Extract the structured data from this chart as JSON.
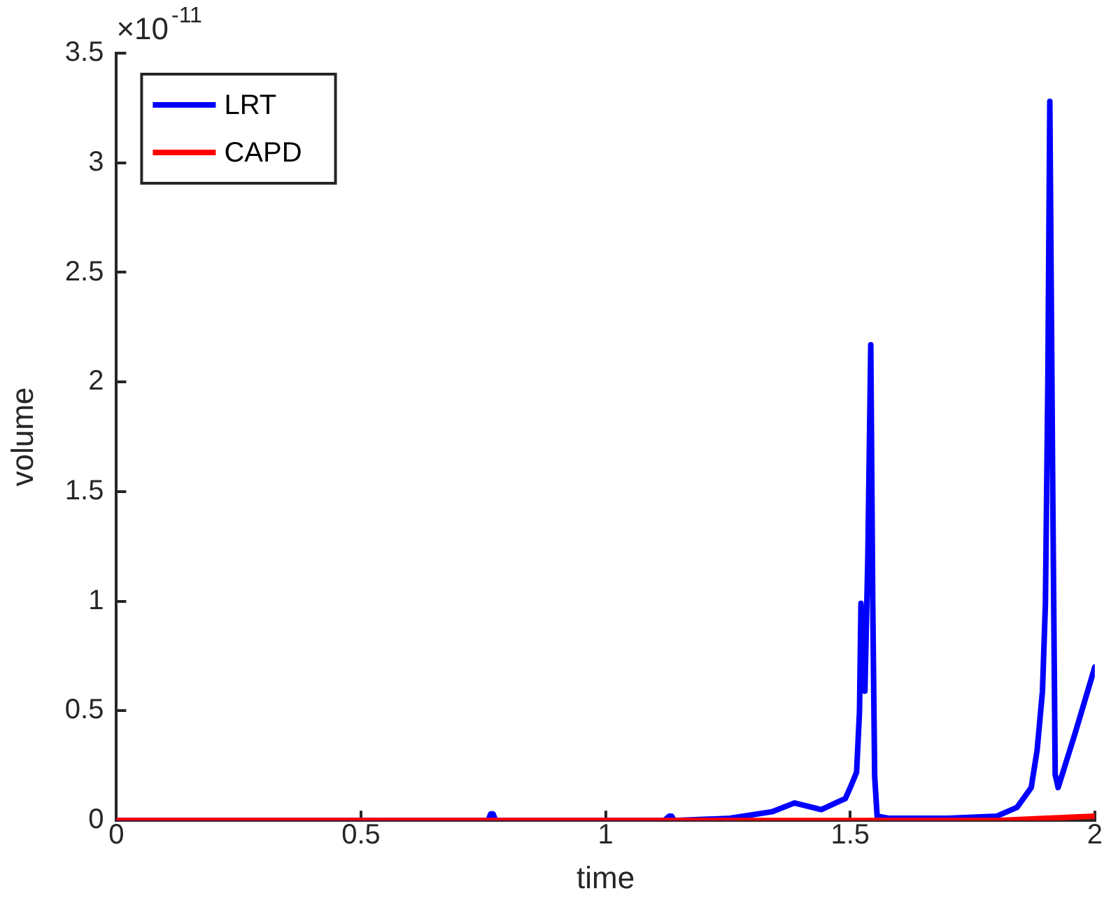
{
  "chart_data": {
    "type": "line",
    "xlabel": "time",
    "ylabel": "volume",
    "annotations": [
      "×10$^{-11}$"
    ],
    "xlim": [
      0,
      2
    ],
    "ylim": [
      0,
      3.5
    ],
    "xticks": [
      0,
      0.5,
      1,
      1.5,
      2
    ],
    "yticks": [
      0,
      0.5,
      1,
      1.5,
      2,
      2.5,
      3,
      3.5
    ],
    "grid": false,
    "legend": "top left",
    "marker": "none",
    "line_style": "solid",
    "series": [
      {
        "name": "LRT",
        "color": "#0000ff",
        "x": [
          0,
          0.76,
          0.765,
          0.77,
          0.775,
          1.12,
          1.13,
          1.135,
          1.14,
          1.254,
          1.34,
          1.386,
          1.441,
          1.47,
          1.49,
          1.5,
          1.513,
          1.519,
          1.522,
          1.526,
          1.53,
          1.536,
          1.542,
          1.546,
          1.55,
          1.555,
          1.58,
          1.7,
          1.8,
          1.841,
          1.87,
          1.882,
          1.893,
          1.899,
          1.904,
          1.908,
          1.914,
          1.919,
          1.925,
          1.96,
          2
        ],
        "values": [
          0,
          0,
          0.03,
          0.03,
          0,
          0,
          0.02,
          0.02,
          0,
          0.01,
          0.04,
          0.08,
          0.05,
          0.08,
          0.1,
          0.15,
          0.22,
          0.5,
          0.99,
          0.8,
          0.59,
          1.2,
          2.17,
          1.0,
          0.2,
          0.02,
          0.01,
          0.01,
          0.02,
          0.06,
          0.15,
          0.32,
          0.59,
          0.99,
          2.0,
          3.28,
          1.5,
          0.21,
          0.15,
          0.4,
          0.7
        ]
      },
      {
        "name": "CAPD",
        "color": "#ff0000",
        "x": [
          0,
          1.5,
          1.8,
          1.9,
          2
        ],
        "values": [
          0,
          0,
          0,
          0.01,
          0.02
        ]
      }
    ]
  }
}
